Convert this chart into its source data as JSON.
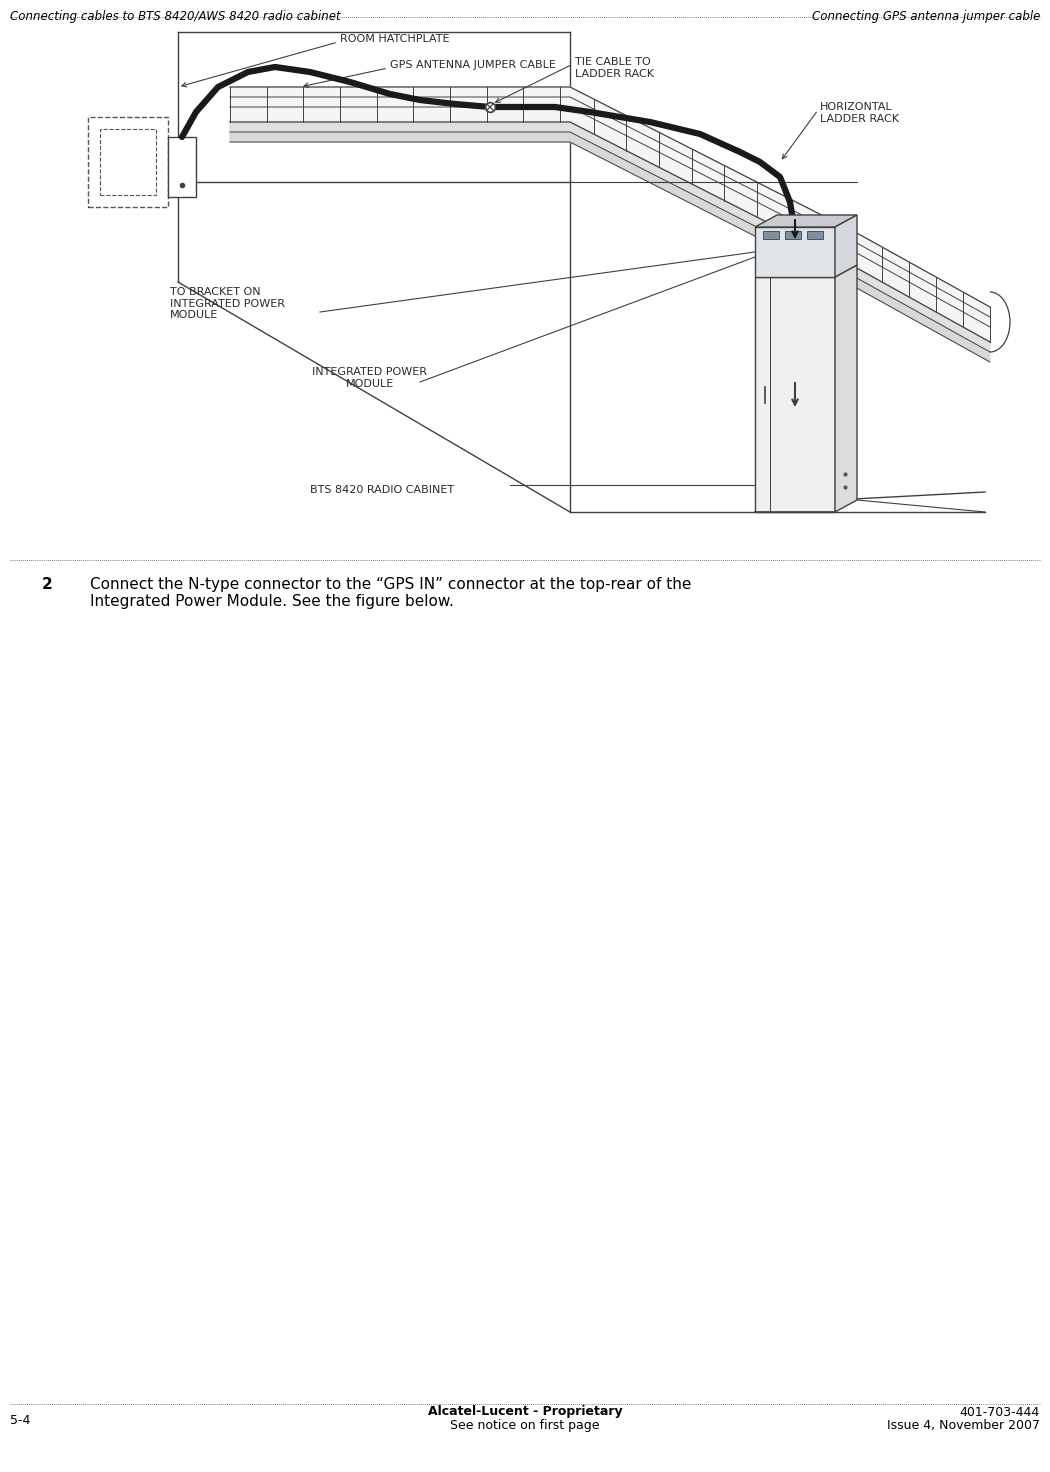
{
  "bg_color": "#ffffff",
  "header_left": "Connecting cables to BTS 8420/AWS 8420 radio cabinet",
  "header_right": "Connecting GPS antenna jumper cable",
  "footer_left": "5-4",
  "footer_center_line1": "Alcatel-Lucent - Proprietary",
  "footer_center_line2": "See notice on first page",
  "footer_right_line1": "401-703-444",
  "footer_right_line2": "Issue 4, November 2007",
  "step_number": "2",
  "step_text": "Connect the N-type connector to the “GPS IN” connector at the top-rear of the\nIntegrated Power Module. See the figure below.",
  "labels": {
    "room_hatchplate": "ROOM HATCHPLATE",
    "gps_antenna_jumper": "GPS ANTENNA JUMPER CABLE",
    "tie_cable": "TIE CABLE TO\nLADDER RACK",
    "horizontal_ladder": "HORIZONTAL\nLADDER RACK",
    "to_bracket": "TO BRACKET ON\nINTEGRATED POWER\nMODULE",
    "integrated_power": "INTEGRATED POWER\nMODULE",
    "bts_cabinet": "BTS 8420 RADIO CABINET"
  },
  "label_fontsize": 8.0,
  "header_fontsize": 8.5,
  "footer_fontsize": 9,
  "step_fontsize": 11
}
